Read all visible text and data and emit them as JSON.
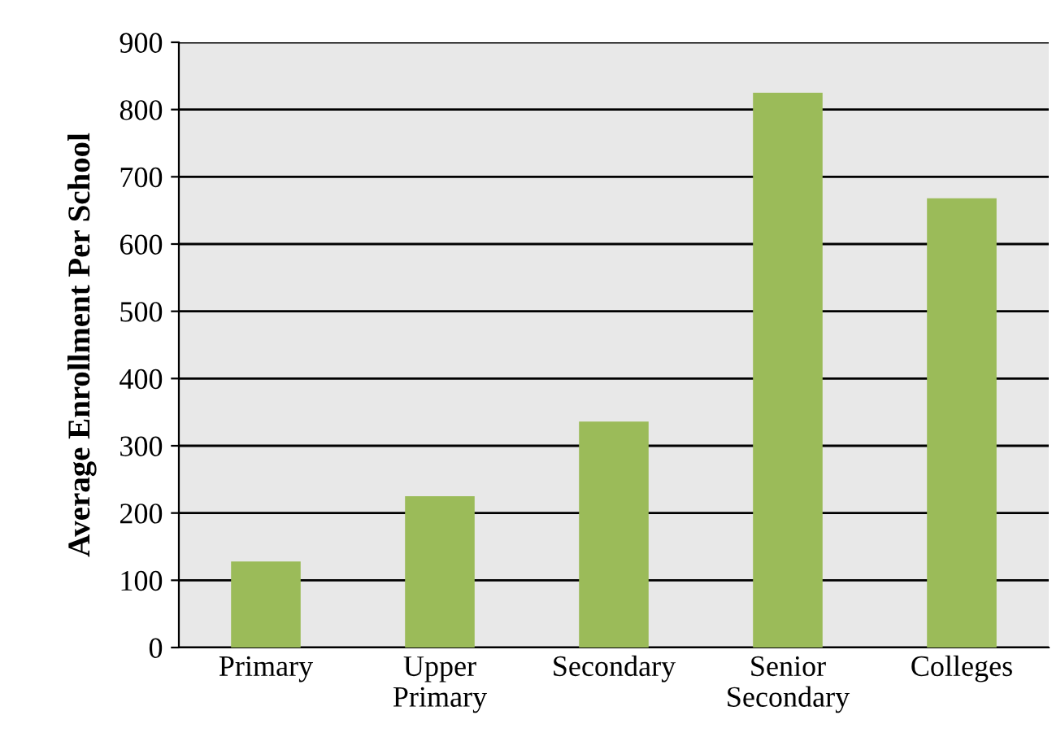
{
  "chart_data": {
    "type": "bar",
    "ylabel": "Average Enrollment Per School",
    "categories": [
      "Primary",
      "Upper\nPrimary",
      "Secondary",
      "Senior\nSecondary",
      "Colleges"
    ],
    "values": [
      128,
      225,
      336,
      825,
      668
    ],
    "color": "#9bbb59",
    "ylim": [
      0,
      900
    ],
    "yticks": [
      0,
      100,
      200,
      300,
      400,
      500,
      600,
      700,
      800,
      900
    ],
    "grid": "y"
  }
}
